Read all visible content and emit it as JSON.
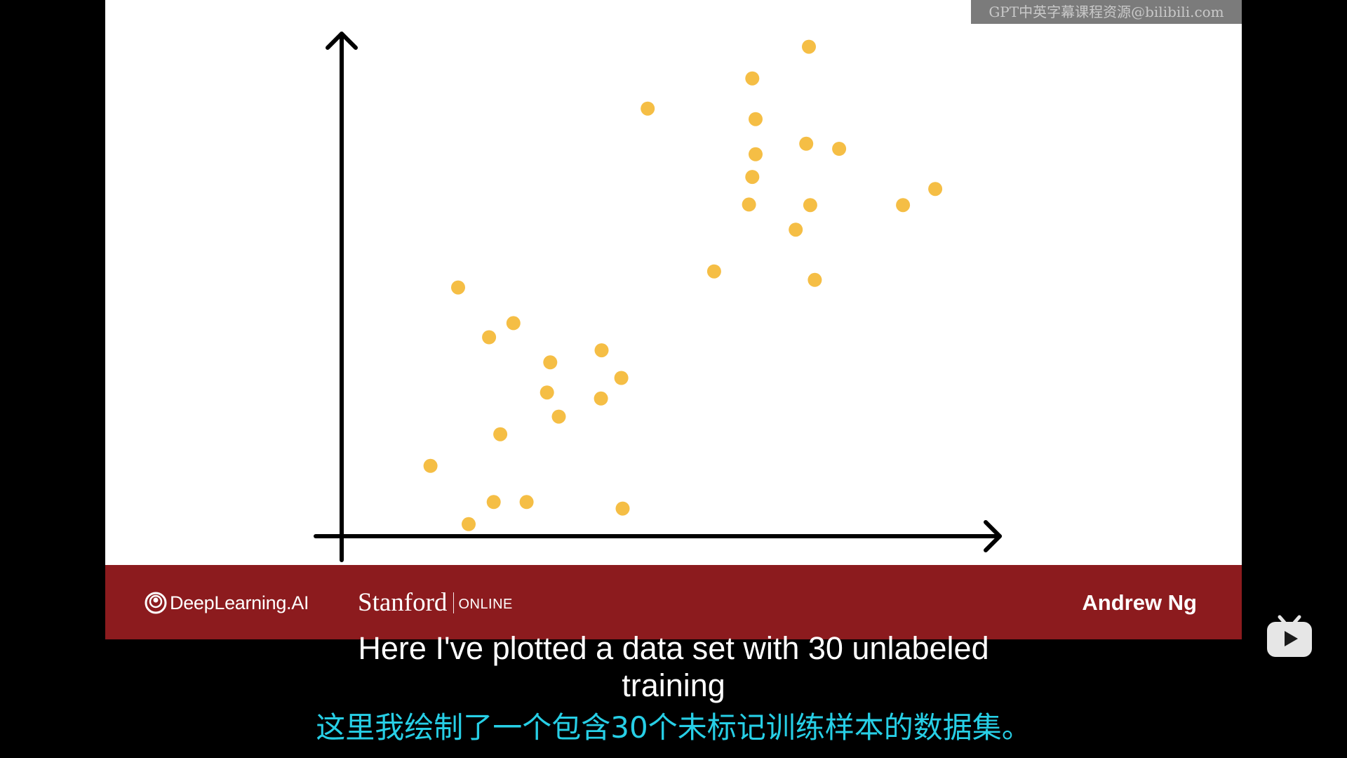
{
  "watermark": "GPT中英字幕课程资源@bilibili.com",
  "chart_data": {
    "type": "scatter",
    "title": "",
    "xlabel": "",
    "ylabel": "",
    "grid": false,
    "xlim": [
      0,
      100
    ],
    "ylim": [
      0,
      100
    ],
    "marker_color": "#f5be45",
    "points": [
      [
        71.0,
        97.4
      ],
      [
        62.4,
        91.1
      ],
      [
        46.5,
        85.1
      ],
      [
        62.9,
        83.0
      ],
      [
        62.9,
        76.0
      ],
      [
        70.6,
        78.1
      ],
      [
        75.6,
        77.1
      ],
      [
        62.4,
        71.5
      ],
      [
        61.9,
        66.0
      ],
      [
        71.2,
        65.9
      ],
      [
        69.0,
        61.0
      ],
      [
        85.3,
        65.9
      ],
      [
        90.2,
        69.1
      ],
      [
        56.6,
        52.7
      ],
      [
        71.9,
        51.0
      ],
      [
        17.7,
        49.5
      ],
      [
        22.4,
        39.6
      ],
      [
        26.1,
        42.4
      ],
      [
        31.7,
        34.6
      ],
      [
        39.5,
        37.0
      ],
      [
        42.5,
        31.5
      ],
      [
        31.2,
        28.6
      ],
      [
        33.0,
        23.8
      ],
      [
        39.4,
        27.4
      ],
      [
        24.1,
        20.3
      ],
      [
        13.5,
        14.0
      ],
      [
        23.1,
        6.8
      ],
      [
        28.1,
        6.8
      ],
      [
        42.7,
        5.5
      ],
      [
        19.3,
        2.4
      ]
    ]
  },
  "footer": {
    "deeplearning_logo": "DeepLearning.AI",
    "stanford_word": "Stanford",
    "stanford_online": "ONLINE",
    "instructor": "Andrew Ng"
  },
  "subtitles": {
    "english": "Here I've plotted a data set with 30 unlabeled training",
    "chinese": "这里我绘制了一个包含30个未标记训练样本的数据集。"
  },
  "player": {
    "icon": "bilibili-tv-play-icon"
  }
}
